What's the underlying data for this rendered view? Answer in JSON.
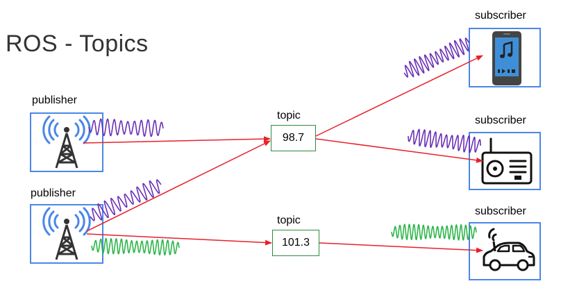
{
  "title": "ROS - Topics",
  "publishers": [
    {
      "label": "publisher",
      "icon": "radio-tower-icon"
    },
    {
      "label": "publisher",
      "icon": "radio-tower-icon"
    }
  ],
  "topics": [
    {
      "label": "topic",
      "value": "98.7"
    },
    {
      "label": "topic",
      "value": "101.3"
    }
  ],
  "subscribers": [
    {
      "label": "subscriber",
      "icon": "smartphone-music-icon"
    },
    {
      "label": "subscriber",
      "icon": "radio-icon"
    },
    {
      "label": "subscriber",
      "icon": "connected-car-icon"
    }
  ],
  "colors": {
    "arrow": "#e8202a",
    "node_border": "#4a86e8",
    "topic_border": "#2e8b3a",
    "wave_purple": "#6a2fb5",
    "wave_green": "#2db54a"
  }
}
